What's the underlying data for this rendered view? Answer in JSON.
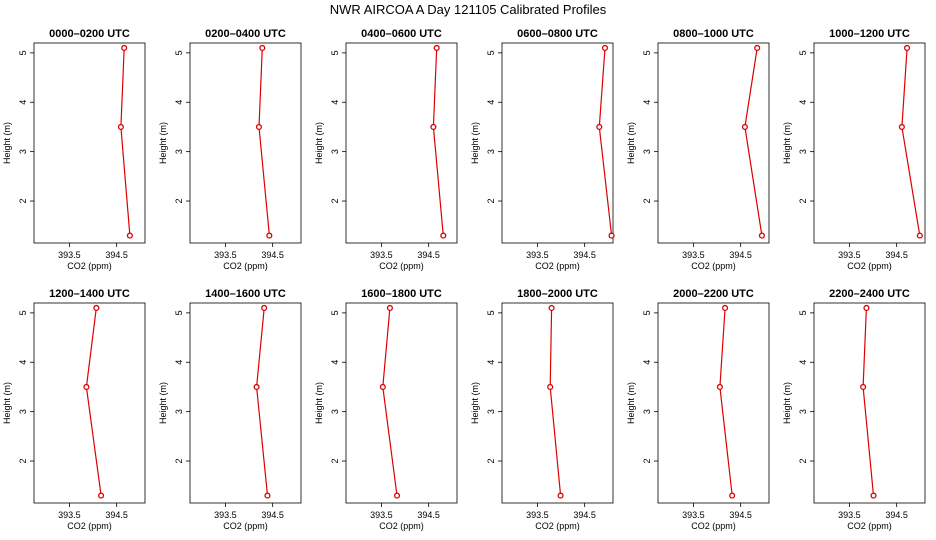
{
  "chart_data": {
    "type": "line",
    "title": "NWR AIRCOA A  Day 121105  Calibrated Profiles",
    "xlabel": "CO2 (ppm)",
    "ylabel": "Height (m)",
    "xlim": [
      392.75,
      395.1
    ],
    "ylim": [
      1.15,
      5.2
    ],
    "x_ticks": [
      393.5,
      394.5
    ],
    "x_tick_labels": [
      "393.5",
      "394.5"
    ],
    "y_ticks": [
      2,
      3,
      4,
      5
    ],
    "y_tick_labels": [
      "2",
      "3",
      "4",
      "5"
    ],
    "grid": false,
    "heights": [
      5.1,
      3.5,
      1.3
    ],
    "panels": [
      {
        "title": "0000–0200 UTC",
        "co2": [
          394.66,
          394.59,
          394.78
        ]
      },
      {
        "title": "0200–0400 UTC",
        "co2": [
          394.28,
          394.21,
          394.43
        ]
      },
      {
        "title": "0400–0600 UTC",
        "co2": [
          394.67,
          394.6,
          394.81
        ]
      },
      {
        "title": "0600–0800 UTC",
        "co2": [
          394.93,
          394.81,
          395.07
        ]
      },
      {
        "title": "0800–1000 UTC",
        "co2": [
          394.85,
          394.59,
          394.95
        ]
      },
      {
        "title": "1000–1200 UTC",
        "co2": [
          394.72,
          394.61,
          394.99
        ]
      },
      {
        "title": "1200–1400 UTC",
        "co2": [
          394.07,
          393.86,
          394.17
        ]
      },
      {
        "title": "1400–1600 UTC",
        "co2": [
          394.32,
          394.16,
          394.39
        ]
      },
      {
        "title": "1600–1800 UTC",
        "co2": [
          393.68,
          393.53,
          393.83
        ]
      },
      {
        "title": "1800–2000 UTC",
        "co2": [
          393.8,
          393.77,
          393.99
        ]
      },
      {
        "title": "2000–2200 UTC",
        "co2": [
          394.17,
          394.06,
          394.32
        ]
      },
      {
        "title": "2200–2400 UTC",
        "co2": [
          393.86,
          393.79,
          394.01
        ]
      }
    ]
  }
}
